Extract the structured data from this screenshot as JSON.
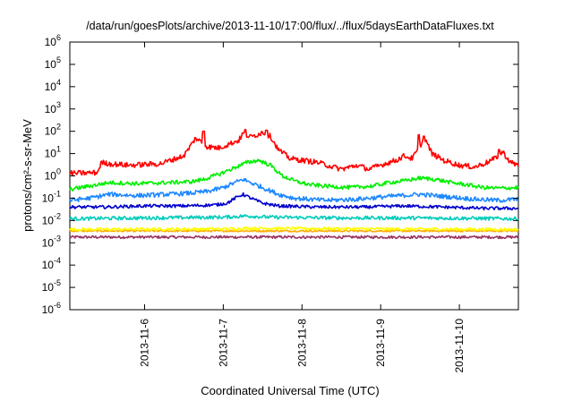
{
  "chart_data": {
    "type": "line",
    "title": "/data/run/goesPlots/archive/2013-11-10/17:00/flux/../flux/5daysEarthDataFluxes.txt",
    "xlabel": "Coordinated Universal Time (UTC)",
    "ylabel": "protons/cm²-s-sr-MeV",
    "yscale": "log",
    "ylim": [
      1e-06,
      1000000.0
    ],
    "y_ticks": [
      {
        "value": 1000000.0,
        "base": "10",
        "exp": "6"
      },
      {
        "value": 100000.0,
        "base": "10",
        "exp": "5"
      },
      {
        "value": 10000.0,
        "base": "10",
        "exp": "4"
      },
      {
        "value": 1000.0,
        "base": "10",
        "exp": "3"
      },
      {
        "value": 100.0,
        "base": "10",
        "exp": "2"
      },
      {
        "value": 10.0,
        "base": "10",
        "exp": "1"
      },
      {
        "value": 1.0,
        "base": "10",
        "exp": "0"
      },
      {
        "value": 0.1,
        "base": "10",
        "exp": "-1"
      },
      {
        "value": 0.01,
        "base": "10",
        "exp": "-2"
      },
      {
        "value": 0.001,
        "base": "10",
        "exp": "-3"
      },
      {
        "value": 0.0001,
        "base": "10",
        "exp": "-4"
      },
      {
        "value": 1e-05,
        "base": "10",
        "exp": "-5"
      },
      {
        "value": 1e-06,
        "base": "10",
        "exp": "-6"
      }
    ],
    "xlim": [
      5.05,
      10.75
    ],
    "x_ticks": [
      {
        "value": 6,
        "label": "2013-11-6"
      },
      {
        "value": 7,
        "label": "2013-11-7"
      },
      {
        "value": 8,
        "label": "2013-11-8"
      },
      {
        "value": 9,
        "label": "2013-11-9"
      },
      {
        "value": 10,
        "label": "2013-11-10"
      }
    ],
    "grid": false,
    "legend": "none",
    "series": [
      {
        "color": "#ff0000",
        "noise": 0.12,
        "points": [
          [
            5.05,
            1.3
          ],
          [
            5.4,
            1.4
          ],
          [
            5.45,
            4
          ],
          [
            5.55,
            3.5
          ],
          [
            5.8,
            3
          ],
          [
            6.2,
            3.5
          ],
          [
            6.5,
            8
          ],
          [
            6.65,
            50
          ],
          [
            6.8,
            20
          ],
          [
            6.95,
            18
          ],
          [
            7.05,
            25
          ],
          [
            7.2,
            40
          ],
          [
            7.25,
            80
          ],
          [
            7.35,
            55
          ],
          [
            7.5,
            90
          ],
          [
            7.6,
            60
          ],
          [
            7.7,
            15
          ],
          [
            7.85,
            6
          ],
          [
            8.2,
            4
          ],
          [
            8.4,
            2.5
          ],
          [
            8.5,
            2
          ],
          [
            8.7,
            3
          ],
          [
            8.85,
            2
          ],
          [
            9.0,
            3
          ],
          [
            9.1,
            4
          ],
          [
            9.2,
            5
          ],
          [
            9.3,
            8
          ],
          [
            9.4,
            6
          ],
          [
            9.5,
            20
          ],
          [
            9.55,
            60
          ],
          [
            9.65,
            10
          ],
          [
            9.8,
            5
          ],
          [
            10.0,
            3
          ],
          [
            10.2,
            2.5
          ],
          [
            10.35,
            4
          ],
          [
            10.45,
            6
          ],
          [
            10.55,
            12
          ],
          [
            10.65,
            4
          ],
          [
            10.75,
            3
          ]
        ],
        "spikes": [
          [
            6.75,
            100
          ],
          [
            7.28,
            120
          ],
          [
            7.55,
            110
          ],
          [
            9.48,
            70
          ],
          [
            9.55,
            60
          ],
          [
            10.5,
            15
          ]
        ]
      },
      {
        "color": "#00ee00",
        "noise": 0.09,
        "points": [
          [
            5.05,
            0.25
          ],
          [
            5.3,
            0.35
          ],
          [
            5.55,
            0.5
          ],
          [
            5.9,
            0.45
          ],
          [
            6.3,
            0.5
          ],
          [
            6.6,
            0.55
          ],
          [
            6.75,
            0.7
          ],
          [
            6.95,
            1.2
          ],
          [
            7.1,
            2
          ],
          [
            7.3,
            4
          ],
          [
            7.45,
            5
          ],
          [
            7.6,
            3
          ],
          [
            7.75,
            1.0
          ],
          [
            7.9,
            0.6
          ],
          [
            8.1,
            0.4
          ],
          [
            8.3,
            0.35
          ],
          [
            8.6,
            0.3
          ],
          [
            8.9,
            0.35
          ],
          [
            9.1,
            0.5
          ],
          [
            9.3,
            0.6
          ],
          [
            9.5,
            0.8
          ],
          [
            9.7,
            0.7
          ],
          [
            9.9,
            0.5
          ],
          [
            10.1,
            0.4
          ],
          [
            10.3,
            0.3
          ],
          [
            10.5,
            0.28
          ],
          [
            10.75,
            0.3
          ]
        ],
        "spikes": []
      },
      {
        "color": "#1e88ff",
        "noise": 0.1,
        "points": [
          [
            5.05,
            0.08
          ],
          [
            5.3,
            0.1
          ],
          [
            5.55,
            0.15
          ],
          [
            5.9,
            0.13
          ],
          [
            6.3,
            0.15
          ],
          [
            6.6,
            0.17
          ],
          [
            6.8,
            0.2
          ],
          [
            7.0,
            0.3
          ],
          [
            7.15,
            0.5
          ],
          [
            7.25,
            0.7
          ],
          [
            7.35,
            0.5
          ],
          [
            7.5,
            0.3
          ],
          [
            7.7,
            0.15
          ],
          [
            7.9,
            0.1
          ],
          [
            8.3,
            0.08
          ],
          [
            8.7,
            0.09
          ],
          [
            9.1,
            0.12
          ],
          [
            9.5,
            0.15
          ],
          [
            9.8,
            0.12
          ],
          [
            10.2,
            0.09
          ],
          [
            10.5,
            0.08
          ],
          [
            10.75,
            0.09
          ]
        ],
        "spikes": []
      },
      {
        "color": "#0000cc",
        "noise": 0.07,
        "points": [
          [
            5.05,
            0.04
          ],
          [
            5.5,
            0.04
          ],
          [
            6.0,
            0.045
          ],
          [
            6.5,
            0.045
          ],
          [
            6.9,
            0.05
          ],
          [
            7.05,
            0.06
          ],
          [
            7.15,
            0.1
          ],
          [
            7.25,
            0.15
          ],
          [
            7.35,
            0.1
          ],
          [
            7.5,
            0.06
          ],
          [
            7.7,
            0.045
          ],
          [
            8.2,
            0.04
          ],
          [
            8.8,
            0.04
          ],
          [
            9.3,
            0.045
          ],
          [
            9.8,
            0.04
          ],
          [
            10.3,
            0.035
          ],
          [
            10.75,
            0.035
          ]
        ],
        "spikes": []
      },
      {
        "color": "#00ccbb",
        "noise": 0.08,
        "points": [
          [
            5.05,
            0.012
          ],
          [
            6.0,
            0.013
          ],
          [
            7.0,
            0.014
          ],
          [
            7.3,
            0.016
          ],
          [
            7.6,
            0.014
          ],
          [
            8.5,
            0.013
          ],
          [
            9.5,
            0.013
          ],
          [
            10.75,
            0.012
          ]
        ],
        "spikes": []
      },
      {
        "color": "#ffff00",
        "noise": 0.06,
        "points": [
          [
            5.05,
            0.004
          ],
          [
            7.0,
            0.0042
          ],
          [
            7.4,
            0.0045
          ],
          [
            9.0,
            0.0042
          ],
          [
            10.75,
            0.004
          ]
        ],
        "spikes": []
      },
      {
        "color": "#ffaa00",
        "noise": 0.04,
        "points": [
          [
            5.05,
            0.0034
          ],
          [
            10.75,
            0.0034
          ]
        ],
        "spikes": []
      },
      {
        "color": "#99335f",
        "noise": 0.06,
        "points": [
          [
            5.05,
            0.0018
          ],
          [
            10.75,
            0.0018
          ]
        ],
        "spikes": []
      }
    ]
  }
}
